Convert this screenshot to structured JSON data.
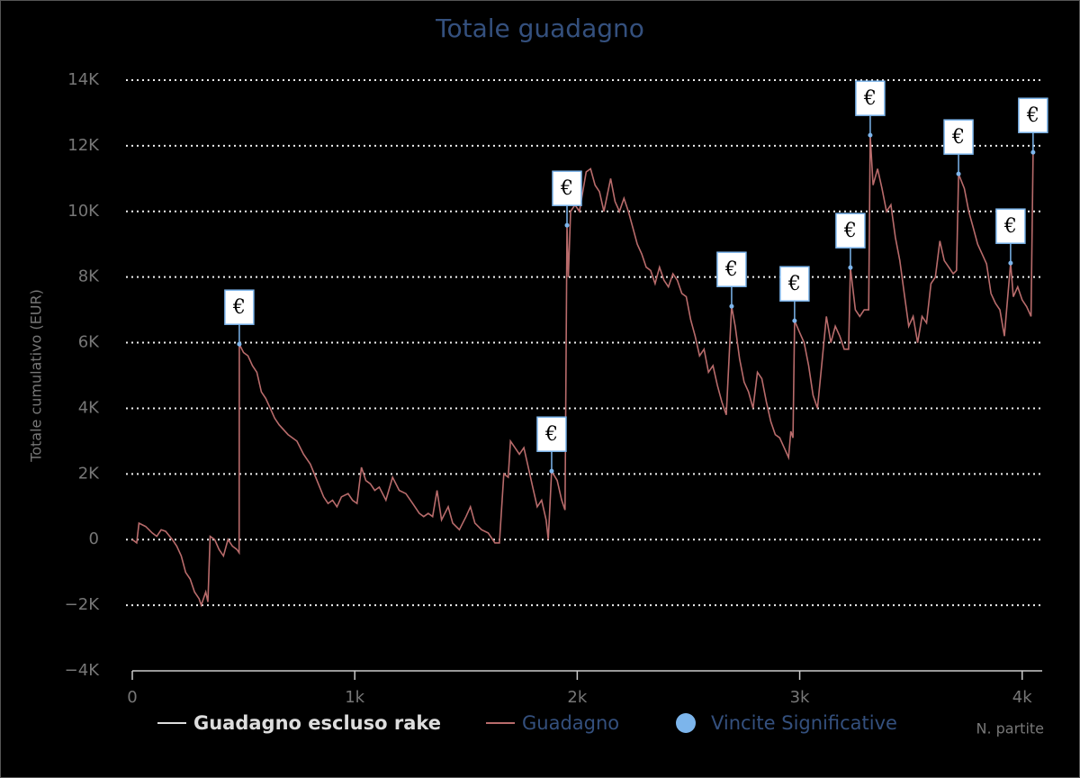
{
  "chart_data": {
    "type": "line",
    "title": "Totale guadagno",
    "xlabel": "N. partite",
    "ylabel": "Totale cumulativo (EUR)",
    "xlim": [
      0,
      4090
    ],
    "ylim": [
      -4000,
      14000
    ],
    "xticks": [
      0,
      {
        "value": 1000,
        "label": "1k"
      },
      {
        "value": 2000,
        "label": "2k"
      },
      {
        "value": 3000,
        "label": "3k"
      },
      {
        "value": 4000,
        "label": "4k"
      }
    ],
    "yticks": [
      {
        "value": -4000,
        "label": "−4K"
      },
      {
        "value": -2000,
        "label": "−2K"
      },
      0,
      {
        "value": 2000,
        "label": "2K"
      },
      {
        "value": 4000,
        "label": "4K"
      },
      {
        "value": 6000,
        "label": "6K"
      },
      {
        "value": 8000,
        "label": "8K"
      },
      {
        "value": 10000,
        "label": "10K"
      },
      {
        "value": 12000,
        "label": "12K"
      },
      {
        "value": 14000,
        "label": "14K"
      }
    ],
    "grid": true,
    "legend": "bottom",
    "point_label": "€",
    "series": [
      {
        "name": "Guadagno escluso rake",
        "type": "line",
        "color": "#dddddd",
        "x": [],
        "values": []
      },
      {
        "name": "Guadagno",
        "type": "line",
        "color": "#b86b6b",
        "x": [
          0,
          20,
          30,
          60,
          90,
          110,
          130,
          150,
          180,
          200,
          220,
          240,
          260,
          280,
          300,
          310,
          330,
          340,
          350,
          370,
          390,
          410,
          430,
          450,
          470,
          480,
          481,
          500,
          520,
          540,
          560,
          580,
          600,
          620,
          640,
          660,
          700,
          740,
          770,
          800,
          830,
          860,
          880,
          900,
          920,
          940,
          970,
          990,
          1010,
          1030,
          1050,
          1070,
          1090,
          1110,
          1140,
          1170,
          1200,
          1230,
          1260,
          1290,
          1310,
          1330,
          1350,
          1370,
          1390,
          1420,
          1440,
          1470,
          1500,
          1520,
          1540,
          1570,
          1600,
          1630,
          1650,
          1670,
          1690,
          1700,
          1720,
          1740,
          1760,
          1780,
          1800,
          1820,
          1840,
          1860,
          1870,
          1885,
          1910,
          1930,
          1945,
          1954,
          1960,
          1970,
          1990,
          2010,
          2040,
          2060,
          2080,
          2100,
          2120,
          2150,
          2170,
          2190,
          2210,
          2230,
          2250,
          2270,
          2290,
          2310,
          2330,
          2350,
          2370,
          2390,
          2410,
          2430,
          2450,
          2470,
          2490,
          2510,
          2530,
          2550,
          2570,
          2590,
          2610,
          2630,
          2650,
          2670,
          2694,
          2710,
          2730,
          2750,
          2770,
          2790,
          2810,
          2830,
          2850,
          2870,
          2890,
          2910,
          2930,
          2950,
          2960,
          2970,
          2977,
          3000,
          3020,
          3040,
          3060,
          3080,
          3100,
          3120,
          3140,
          3160,
          3180,
          3200,
          3220,
          3228,
          3250,
          3270,
          3290,
          3310,
          3317,
          3330,
          3350,
          3370,
          3390,
          3410,
          3430,
          3450,
          3470,
          3490,
          3510,
          3530,
          3550,
          3570,
          3590,
          3610,
          3630,
          3650,
          3670,
          3690,
          3705,
          3714,
          3740,
          3760,
          3780,
          3800,
          3820,
          3840,
          3860,
          3880,
          3900,
          3920,
          3948,
          3960,
          3980,
          4000,
          4020,
          4040,
          4049
        ],
        "values": [
          0,
          -100,
          500,
          400,
          200,
          100,
          300,
          250,
          0,
          -200,
          -500,
          -1000,
          -1200,
          -1600,
          -1800,
          -2000,
          -1600,
          -1900,
          100,
          0,
          -300,
          -500,
          0,
          -200,
          -300,
          -400,
          5955,
          5700,
          5600,
          5300,
          5100,
          4500,
          4300,
          4000,
          3700,
          3500,
          3200,
          3000,
          2600,
          2300,
          1800,
          1300,
          1100,
          1200,
          1000,
          1300,
          1400,
          1200,
          1100,
          2200,
          1800,
          1700,
          1500,
          1600,
          1200,
          1900,
          1500,
          1400,
          1100,
          800,
          700,
          800,
          700,
          1500,
          600,
          1000,
          500,
          300,
          700,
          1000,
          500,
          300,
          200,
          -100,
          -100,
          2000,
          1900,
          3000,
          2800,
          2600,
          2800,
          2200,
          1600,
          1000,
          1200,
          600,
          0,
          2086,
          1800,
          1200,
          900,
          9577,
          8000,
          10000,
          10200,
          10000,
          11200,
          11300,
          10800,
          10600,
          10000,
          11000,
          10300,
          10000,
          10400,
          10000,
          9500,
          9000,
          8700,
          8300,
          8200,
          7800,
          8300,
          7900,
          7700,
          8100,
          7900,
          7500,
          7400,
          6700,
          6200,
          5600,
          5800,
          5100,
          5300,
          4700,
          4200,
          3800,
          7108,
          6500,
          5500,
          4800,
          4500,
          4000,
          5100,
          4900,
          4200,
          3600,
          3200,
          3100,
          2800,
          2500,
          3300,
          3100,
          6668,
          6300,
          6000,
          5300,
          4400,
          4000,
          5400,
          6800,
          6000,
          6500,
          6200,
          5800,
          5800,
          8288,
          7000,
          6800,
          7000,
          7000,
          12322,
          10800,
          11300,
          10700,
          10000,
          10200,
          9200,
          8500,
          7500,
          6500,
          6800,
          6000,
          6800,
          6600,
          7800,
          8000,
          9100,
          8500,
          8300,
          8100,
          8200,
          11142,
          10700,
          10000,
          9500,
          9000,
          8700,
          8400,
          7500,
          7200,
          7000,
          6200,
          8425,
          7400,
          7700,
          7300,
          7100,
          6800,
          11800
        ]
      },
      {
        "name": "Vincite Significative",
        "type": "scatter",
        "color": "#7cb5ec",
        "x": [
          481,
          1885,
          1954,
          2694,
          2977,
          3228,
          3317,
          3714,
          3948,
          4049
        ],
        "values": [
          5955,
          2086,
          9577,
          7108,
          6668,
          8288,
          12322,
          11142,
          8425,
          11800
        ]
      }
    ]
  }
}
